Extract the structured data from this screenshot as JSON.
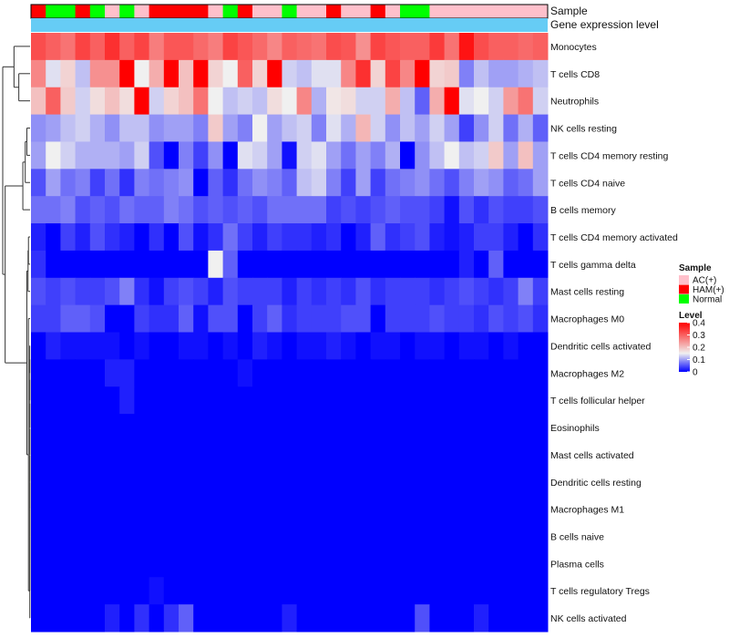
{
  "chart_data": {
    "type": "heatmap",
    "annotation_labels": [
      "Sample",
      "Gene expression level"
    ],
    "rows": [
      "Monocytes",
      "T cells CD8",
      "Neutrophils",
      "NK cells resting",
      "T cells CD4 memory resting",
      "T cells CD4 naive",
      "B cells memory",
      "T cells CD4 memory activated",
      "T cells gamma delta",
      "Mast cells resting",
      "Macrophages M0",
      "Dendritic cells activated",
      "Macrophages M2",
      "T cells follicular helper",
      "Eosinophils",
      "Mast cells activated",
      "Dendritic cells resting",
      "Macrophages M1",
      "B cells naive",
      "Plasma cells",
      "T cells regulatory  Tregs",
      "NK cells activated"
    ],
    "sample_groups": [
      "HAM(+)",
      "Normal",
      "Normal",
      "HAM(+)",
      "Normal",
      "AC(+)",
      "Normal",
      "AC(+)",
      "HAM(+)",
      "HAM(+)",
      "HAM(+)",
      "HAM(+)",
      "AC(+)",
      "Normal",
      "HAM(+)",
      "AC(+)",
      "AC(+)",
      "Normal",
      "AC(+)",
      "AC(+)",
      "HAM(+)",
      "AC(+)",
      "AC(+)",
      "HAM(+)",
      "AC(+)",
      "Normal",
      "Normal",
      "AC(+)",
      "AC(+)",
      "AC(+)",
      "AC(+)",
      "AC(+)",
      "AC(+)",
      "AC(+)",
      "AC(+)"
    ],
    "values": [
      [
        0.32,
        0.3,
        0.28,
        0.33,
        0.3,
        0.35,
        0.3,
        0.33,
        0.27,
        0.31,
        0.31,
        0.29,
        0.27,
        0.33,
        0.31,
        0.29,
        0.26,
        0.3,
        0.29,
        0.28,
        0.32,
        0.31,
        0.25,
        0.33,
        0.31,
        0.3,
        0.3,
        0.34,
        0.28,
        0.38,
        0.32,
        0.3,
        0.3,
        0.29,
        0.3
      ],
      [
        0.26,
        0.14,
        0.18,
        0.12,
        0.25,
        0.25,
        0.4,
        0.15,
        0.22,
        0.4,
        0.2,
        0.4,
        0.18,
        0.15,
        0.3,
        0.18,
        0.42,
        0.13,
        0.12,
        0.14,
        0.14,
        0.26,
        0.35,
        0.18,
        0.33,
        0.26,
        0.4,
        0.18,
        0.19,
        0.08,
        0.12,
        0.1,
        0.1,
        0.11,
        0.12
      ],
      [
        0.2,
        0.3,
        0.19,
        0.13,
        0.17,
        0.2,
        0.17,
        0.4,
        0.13,
        0.18,
        0.2,
        0.28,
        0.15,
        0.12,
        0.13,
        0.12,
        0.17,
        0.15,
        0.26,
        0.11,
        0.16,
        0.17,
        0.13,
        0.13,
        0.22,
        0.12,
        0.06,
        0.22,
        0.4,
        0.14,
        0.15,
        0.13,
        0.24,
        0.28,
        0.13
      ],
      [
        0.09,
        0.1,
        0.12,
        0.13,
        0.11,
        0.09,
        0.12,
        0.12,
        0.09,
        0.1,
        0.1,
        0.08,
        0.19,
        0.1,
        0.08,
        0.15,
        0.1,
        0.12,
        0.13,
        0.08,
        0.14,
        0.11,
        0.21,
        0.13,
        0.09,
        0.12,
        0.1,
        0.13,
        0.1,
        0.04,
        0.09,
        0.13,
        0.07,
        0.11,
        0.06
      ],
      [
        0.1,
        0.15,
        0.13,
        0.11,
        0.11,
        0.11,
        0.1,
        0.13,
        0.05,
        0.0,
        0.08,
        0.04,
        0.09,
        0.0,
        0.14,
        0.13,
        0.1,
        0.01,
        0.13,
        0.14,
        0.1,
        0.07,
        0.1,
        0.08,
        0.11,
        0.0,
        0.09,
        0.12,
        0.15,
        0.12,
        0.13,
        0.19,
        0.1,
        0.2,
        0.1
      ],
      [
        0.05,
        0.1,
        0.07,
        0.08,
        0.04,
        0.07,
        0.03,
        0.08,
        0.07,
        0.08,
        0.09,
        0.0,
        0.06,
        0.03,
        0.07,
        0.09,
        0.08,
        0.06,
        0.12,
        0.13,
        0.08,
        0.04,
        0.1,
        0.04,
        0.07,
        0.08,
        0.09,
        0.07,
        0.05,
        0.08,
        0.1,
        0.09,
        0.06,
        0.07,
        0.1
      ],
      [
        0.07,
        0.07,
        0.08,
        0.05,
        0.06,
        0.05,
        0.07,
        0.06,
        0.06,
        0.08,
        0.07,
        0.05,
        0.06,
        0.05,
        0.06,
        0.05,
        0.07,
        0.07,
        0.07,
        0.07,
        0.04,
        0.05,
        0.04,
        0.05,
        0.06,
        0.05,
        0.05,
        0.04,
        0.01,
        0.05,
        0.03,
        0.05,
        0.04,
        0.04,
        0.05
      ],
      [
        0.02,
        0.0,
        0.04,
        0.02,
        0.05,
        0.03,
        0.02,
        0.0,
        0.03,
        0.0,
        0.05,
        0.01,
        0.03,
        0.07,
        0.04,
        0.02,
        0.04,
        0.03,
        0.03,
        0.02,
        0.03,
        0.0,
        0.02,
        0.06,
        0.03,
        0.04,
        0.05,
        0.02,
        0.01,
        0.02,
        0.04,
        0.04,
        0.02,
        0.0,
        0.03
      ],
      [
        0.03,
        0.0,
        0.0,
        0.0,
        0.0,
        0.0,
        0.0,
        0.0,
        0.0,
        0.0,
        0.0,
        0.0,
        0.15,
        0.06,
        0.0,
        0.0,
        0.0,
        0.0,
        0.0,
        0.0,
        0.0,
        0.0,
        0.0,
        0.0,
        0.0,
        0.0,
        0.0,
        0.0,
        0.0,
        0.02,
        0.0,
        0.06,
        0.0,
        0.0,
        0.0
      ],
      [
        0.05,
        0.04,
        0.05,
        0.04,
        0.04,
        0.05,
        0.08,
        0.03,
        0.01,
        0.04,
        0.05,
        0.04,
        0.02,
        0.05,
        0.04,
        0.04,
        0.04,
        0.02,
        0.04,
        0.03,
        0.04,
        0.03,
        0.05,
        0.03,
        0.04,
        0.04,
        0.04,
        0.03,
        0.04,
        0.05,
        0.04,
        0.03,
        0.04,
        0.08,
        0.04
      ],
      [
        0.04,
        0.04,
        0.06,
        0.06,
        0.05,
        0.0,
        0.0,
        0.04,
        0.03,
        0.03,
        0.06,
        0.01,
        0.05,
        0.05,
        0.0,
        0.04,
        0.06,
        0.03,
        0.04,
        0.04,
        0.04,
        0.05,
        0.05,
        0.0,
        0.04,
        0.04,
        0.04,
        0.05,
        0.04,
        0.04,
        0.03,
        0.05,
        0.04,
        0.05,
        0.03
      ],
      [
        0.0,
        0.02,
        0.01,
        0.01,
        0.01,
        0.01,
        0.0,
        0.01,
        0.0,
        0.0,
        0.01,
        0.01,
        0.0,
        0.01,
        0.0,
        0.02,
        0.01,
        0.0,
        0.01,
        0.01,
        0.02,
        0.01,
        0.0,
        0.01,
        0.01,
        0.0,
        0.01,
        0.01,
        0.0,
        0.01,
        0.01,
        0.0,
        0.01,
        0.0,
        0.0
      ],
      [
        0.0,
        0.0,
        0.0,
        0.0,
        0.0,
        0.02,
        0.02,
        0.0,
        0.0,
        0.0,
        0.0,
        0.0,
        0.0,
        0.0,
        0.01,
        0.0,
        0.0,
        0.0,
        0.0,
        0.0,
        0.0,
        0.0,
        0.0,
        0.0,
        0.0,
        0.0,
        0.0,
        0.0,
        0.0,
        0.0,
        0.0,
        0.0,
        0.0,
        0.0,
        0.0
      ],
      [
        0.0,
        0.0,
        0.0,
        0.0,
        0.0,
        0.0,
        0.02,
        0.0,
        0.0,
        0.0,
        0.0,
        0.0,
        0.0,
        0.0,
        0.0,
        0.0,
        0.0,
        0.0,
        0.0,
        0.0,
        0.0,
        0.0,
        0.0,
        0.0,
        0.0,
        0.0,
        0.0,
        0.0,
        0.0,
        0.0,
        0.0,
        0.0,
        0.0,
        0.0,
        0.0
      ],
      [
        0.0,
        0.0,
        0.0,
        0.0,
        0.0,
        0.0,
        0.0,
        0.0,
        0.0,
        0.0,
        0.0,
        0.0,
        0.0,
        0.0,
        0.0,
        0.0,
        0.0,
        0.0,
        0.0,
        0.0,
        0.0,
        0.0,
        0.0,
        0.0,
        0.0,
        0.0,
        0.0,
        0.0,
        0.0,
        0.0,
        0.0,
        0.0,
        0.0,
        0.0,
        0.0
      ],
      [
        0.0,
        0.0,
        0.0,
        0.0,
        0.0,
        0.0,
        0.0,
        0.0,
        0.0,
        0.0,
        0.0,
        0.0,
        0.0,
        0.0,
        0.0,
        0.0,
        0.0,
        0.0,
        0.0,
        0.0,
        0.0,
        0.0,
        0.0,
        0.0,
        0.0,
        0.0,
        0.0,
        0.0,
        0.0,
        0.0,
        0.0,
        0.0,
        0.0,
        0.0,
        0.0
      ],
      [
        0.0,
        0.0,
        0.0,
        0.0,
        0.0,
        0.0,
        0.0,
        0.0,
        0.0,
        0.0,
        0.0,
        0.0,
        0.0,
        0.0,
        0.0,
        0.0,
        0.0,
        0.0,
        0.0,
        0.0,
        0.0,
        0.0,
        0.0,
        0.0,
        0.0,
        0.0,
        0.0,
        0.0,
        0.0,
        0.0,
        0.0,
        0.0,
        0.0,
        0.0,
        0.0
      ],
      [
        0.0,
        0.0,
        0.0,
        0.0,
        0.0,
        0.0,
        0.0,
        0.0,
        0.0,
        0.0,
        0.0,
        0.0,
        0.0,
        0.0,
        0.0,
        0.0,
        0.0,
        0.0,
        0.0,
        0.0,
        0.0,
        0.0,
        0.0,
        0.0,
        0.0,
        0.0,
        0.0,
        0.0,
        0.0,
        0.0,
        0.0,
        0.0,
        0.0,
        0.0,
        0.0
      ],
      [
        0.0,
        0.0,
        0.0,
        0.0,
        0.0,
        0.0,
        0.0,
        0.0,
        0.0,
        0.0,
        0.0,
        0.0,
        0.0,
        0.0,
        0.0,
        0.0,
        0.0,
        0.0,
        0.0,
        0.0,
        0.0,
        0.0,
        0.0,
        0.0,
        0.0,
        0.0,
        0.0,
        0.0,
        0.0,
        0.0,
        0.0,
        0.0,
        0.0,
        0.0,
        0.0
      ],
      [
        0.0,
        0.0,
        0.0,
        0.0,
        0.0,
        0.0,
        0.0,
        0.0,
        0.0,
        0.0,
        0.0,
        0.0,
        0.0,
        0.0,
        0.0,
        0.0,
        0.0,
        0.0,
        0.0,
        0.0,
        0.0,
        0.0,
        0.0,
        0.0,
        0.0,
        0.0,
        0.0,
        0.0,
        0.0,
        0.0,
        0.0,
        0.0,
        0.0,
        0.0,
        0.0
      ],
      [
        0.0,
        0.0,
        0.0,
        0.0,
        0.0,
        0.0,
        0.0,
        0.0,
        0.01,
        0.0,
        0.0,
        0.0,
        0.0,
        0.0,
        0.0,
        0.0,
        0.0,
        0.0,
        0.0,
        0.0,
        0.0,
        0.0,
        0.0,
        0.0,
        0.0,
        0.0,
        0.0,
        0.0,
        0.0,
        0.0,
        0.0,
        0.0,
        0.0,
        0.0,
        0.0
      ],
      [
        0.0,
        0.0,
        0.0,
        0.0,
        0.0,
        0.02,
        0.0,
        0.03,
        0.0,
        0.03,
        0.06,
        0.0,
        0.0,
        0.0,
        0.0,
        0.0,
        0.0,
        0.02,
        0.0,
        0.0,
        0.0,
        0.0,
        0.0,
        0.0,
        0.0,
        0.0,
        0.05,
        0.0,
        0.0,
        0.0,
        0.02,
        0.0,
        0.0,
        0.0,
        0.0
      ]
    ],
    "legend_sample": {
      "title": "Sample",
      "entries": [
        "AC(+)",
        "HAM(+)",
        "Normal"
      ],
      "colors": [
        "#FFC0CB",
        "#FF0000",
        "#00FF00"
      ]
    },
    "legend_level": {
      "title": "Level",
      "ticks": [
        "0.4",
        "0.3",
        "0.2",
        "0.1",
        "0"
      ],
      "tick_values": [
        0.4,
        0.3,
        0.2,
        0.1,
        0.0
      ],
      "range": [
        0,
        0.4
      ]
    },
    "colors": {
      "low": "#0000FF",
      "mid": "#F0F0F0",
      "high": "#FF0000",
      "gene_expression_bar": "#66CCF5"
    },
    "mid_value": 0.15
  }
}
